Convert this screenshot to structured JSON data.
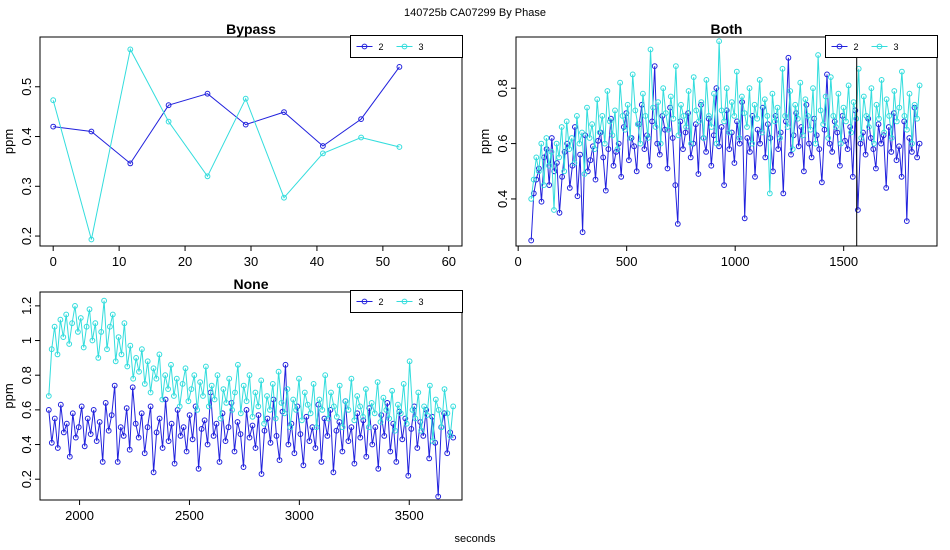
{
  "figure": {
    "title": "140725b    CA07299   By Phase",
    "xlabel": "seconds"
  },
  "colors": {
    "series_2": "#2222dd",
    "series_3": "#33dddd",
    "axis": "#000000"
  },
  "chart_data": [
    {
      "type": "line",
      "title": "Bypass",
      "ylabel": "ppm",
      "xlim": [
        -2,
        62
      ],
      "ylim": [
        0.18,
        0.6
      ],
      "xticks": [
        0,
        10,
        20,
        30,
        40,
        50,
        60
      ],
      "yticks": [
        0.2,
        0.3,
        0.4,
        0.5
      ],
      "legend": {
        "position": "top-right",
        "entries": [
          "2",
          "3"
        ]
      },
      "series": [
        {
          "name": "2",
          "x": [
            0,
            5.8,
            11.7,
            17.5,
            23.4,
            29.2,
            35,
            40.9,
            46.7,
            52.5
          ],
          "y": [
            0.42,
            0.41,
            0.346,
            0.463,
            0.486,
            0.424,
            0.449,
            0.381,
            0.435,
            0.54
          ]
        },
        {
          "name": "3",
          "x": [
            0,
            5.8,
            11.7,
            17.5,
            23.4,
            29.2,
            35,
            40.9,
            46.7,
            52.5
          ],
          "y": [
            0.473,
            0.193,
            0.575,
            0.43,
            0.32,
            0.476,
            0.277,
            0.366,
            0.398,
            0.379
          ]
        }
      ]
    },
    {
      "type": "line",
      "title": "Both",
      "ylabel": "ppm",
      "xlim": [
        -10,
        1930
      ],
      "ylim": [
        0.23,
        0.985
      ],
      "xticks": [
        0,
        500,
        1000,
        1500
      ],
      "yticks": [
        0.4,
        0.6,
        0.8
      ],
      "vline": 1560,
      "legend": {
        "position": "top-right",
        "entries": [
          "2",
          "3"
        ]
      },
      "series": [
        {
          "name": "2",
          "x_start": 60,
          "x_end": 1850,
          "y": [
            0.25,
            0.42,
            0.47,
            0.51,
            0.39,
            0.55,
            0.58,
            0.45,
            0.62,
            0.5,
            0.53,
            0.35,
            0.48,
            0.57,
            0.6,
            0.44,
            0.52,
            0.66,
            0.41,
            0.56,
            0.28,
            0.63,
            0.5,
            0.54,
            0.59,
            0.47,
            0.61,
            0.64,
            0.55,
            0.43,
            0.58,
            0.69,
            0.52,
            0.57,
            0.6,
            0.48,
            0.66,
            0.71,
            0.54,
            0.62,
            0.59,
            0.5,
            0.67,
            0.74,
            0.58,
            0.63,
            0.52,
            0.68,
            0.88,
            0.6,
            0.56,
            0.7,
            0.65,
            0.51,
            0.73,
            0.62,
            0.45,
            0.31,
            0.68,
            0.58,
            0.64,
            0.71,
            0.55,
            0.6,
            0.67,
            0.49,
            0.74,
            0.62,
            0.57,
            0.69,
            0.52,
            0.63,
            0.8,
            0.59,
            0.66,
            0.45,
            0.72,
            0.58,
            0.64,
            0.53,
            0.68,
            0.6,
            0.75,
            0.33,
            0.62,
            0.57,
            0.7,
            0.48,
            0.65,
            0.6,
            0.73,
            0.55,
            0.67,
            0.62,
            0.5,
            0.7,
            0.58,
            0.64,
            0.42,
            0.68,
            0.91,
            0.56,
            0.63,
            0.71,
            0.59,
            0.66,
            0.5,
            0.74,
            0.6,
            0.55,
            0.69,
            0.63,
            0.58,
            0.46,
            0.65,
            0.85,
            0.6,
            0.57,
            0.68,
            0.64,
            0.52,
            0.7,
            0.61,
            0.58,
            0.66,
            0.48,
            0.72,
            0.36,
            0.6,
            0.64,
            0.56,
            0.69,
            0.62,
            0.58,
            0.51,
            0.67,
            0.6,
            0.63,
            0.44,
            0.66,
            0.57,
            0.71,
            0.54,
            0.59,
            0.48,
            0.68,
            0.32,
            0.62,
            0.57,
            0.73,
            0.55,
            0.6
          ]
        },
        {
          "name": "3",
          "x_start": 60,
          "x_end": 1850,
          "y": [
            0.4,
            0.47,
            0.55,
            0.5,
            0.6,
            0.45,
            0.62,
            0.52,
            0.57,
            0.36,
            0.6,
            0.55,
            0.66,
            0.5,
            0.68,
            0.58,
            0.62,
            0.53,
            0.7,
            0.6,
            0.64,
            0.49,
            0.73,
            0.62,
            0.67,
            0.58,
            0.76,
            0.64,
            0.7,
            0.6,
            0.79,
            0.68,
            0.63,
            0.72,
            0.58,
            0.82,
            0.7,
            0.65,
            0.74,
            0.62,
            0.85,
            0.72,
            0.67,
            0.6,
            0.78,
            0.7,
            0.62,
            0.94,
            0.73,
            0.66,
            0.75,
            0.6,
            0.8,
            0.71,
            0.65,
            0.77,
            0.69,
            0.88,
            0.63,
            0.74,
            0.7,
            0.66,
            0.79,
            0.6,
            0.84,
            0.72,
            0.68,
            0.75,
            0.62,
            0.83,
            0.7,
            0.66,
            0.78,
            0.6,
            0.97,
            0.72,
            0.68,
            0.8,
            0.64,
            0.75,
            0.7,
            0.86,
            0.62,
            0.77,
            0.71,
            0.66,
            0.8,
            0.6,
            0.74,
            0.69,
            0.83,
            0.64,
            0.76,
            0.7,
            0.42,
            0.78,
            0.68,
            0.73,
            0.62,
            0.87,
            0.7,
            0.66,
            0.79,
            0.58,
            0.74,
            0.69,
            0.82,
            0.63,
            0.76,
            0.7,
            0.65,
            0.8,
            0.6,
            0.92,
            0.72,
            0.67,
            0.77,
            0.62,
            0.84,
            0.7,
            0.66,
            0.78,
            0.6,
            0.73,
            0.68,
            0.81,
            0.64,
            0.75,
            0.69,
            0.87,
            0.62,
            0.77,
            0.7,
            0.66,
            0.8,
            0.6,
            0.74,
            0.69,
            0.83,
            0.64,
            0.76,
            0.7,
            0.62,
            0.79,
            0.68,
            0.73,
            0.86,
            0.7,
            0.65,
            0.78,
            0.6,
            0.74,
            0.69,
            0.81
          ]
        }
      ]
    },
    {
      "type": "line",
      "title": "None",
      "ylabel": "ppm",
      "xlim": [
        1820,
        3740
      ],
      "ylim": [
        0.08,
        1.28
      ],
      "xticks": [
        2000,
        2500,
        3000,
        3500
      ],
      "yticks": [
        0.2,
        0.4,
        0.6,
        0.8,
        1.0,
        1.2
      ],
      "legend": {
        "position": "top-right",
        "entries": [
          "2",
          "3"
        ]
      },
      "series": [
        {
          "name": "2",
          "x_start": 1860,
          "x_end": 3700,
          "y": [
            0.6,
            0.41,
            0.55,
            0.38,
            0.63,
            0.47,
            0.52,
            0.33,
            0.58,
            0.44,
            0.5,
            0.62,
            0.39,
            0.55,
            0.46,
            0.6,
            0.42,
            0.53,
            0.3,
            0.64,
            0.48,
            0.57,
            0.74,
            0.3,
            0.5,
            0.45,
            0.61,
            0.37,
            0.73,
            0.52,
            0.44,
            0.58,
            0.35,
            0.5,
            0.62,
            0.24,
            0.47,
            0.55,
            0.38,
            0.66,
            0.42,
            0.52,
            0.29,
            0.6,
            0.45,
            0.5,
            0.36,
            0.57,
            0.43,
            0.62,
            0.26,
            0.49,
            0.54,
            0.4,
            0.7,
            0.45,
            0.52,
            0.3,
            0.58,
            0.42,
            0.5,
            0.64,
            0.36,
            0.53,
            0.46,
            0.27,
            0.6,
            0.44,
            0.51,
            0.38,
            0.57,
            0.23,
            0.48,
            0.55,
            0.41,
            0.66,
            0.45,
            0.31,
            0.59,
            0.86,
            0.4,
            0.52,
            0.35,
            0.62,
            0.46,
            0.28,
            0.56,
            0.42,
            0.5,
            0.38,
            0.63,
            0.3,
            0.55,
            0.45,
            0.6,
            0.24,
            0.48,
            0.53,
            0.36,
            0.65,
            0.42,
            0.5,
            0.29,
            0.58,
            0.44,
            0.54,
            0.33,
            0.61,
            0.4,
            0.5,
            0.26,
            0.57,
            0.45,
            0.64,
            0.36,
            0.52,
            0.3,
            0.59,
            0.43,
            0.55,
            0.22,
            0.49,
            0.62,
            0.38,
            0.53,
            0.45,
            0.6,
            0.32,
            0.56,
            0.41,
            0.1,
            0.5,
            0.58,
            0.35,
            0.47,
            0.44
          ]
        },
        {
          "name": "3",
          "x_start": 1860,
          "x_end": 3700,
          "y": [
            0.68,
            0.95,
            1.08,
            0.92,
            1.12,
            1.02,
            1.15,
            0.98,
            1.1,
            1.2,
            1.05,
            1.13,
            0.96,
            1.08,
            1.18,
            1.0,
            1.1,
            0.9,
            1.05,
            1.23,
            0.95,
            1.08,
            1.15,
            0.88,
            1.02,
            0.92,
            1.1,
            0.85,
            0.97,
            0.78,
            0.9,
            0.82,
            0.95,
            0.75,
            0.88,
            0.7,
            0.84,
            0.78,
            0.92,
            0.66,
            0.8,
            0.72,
            0.86,
            0.68,
            0.78,
            0.62,
            0.75,
            0.84,
            0.65,
            0.72,
            0.8,
            0.6,
            0.76,
            0.68,
            0.85,
            0.62,
            0.74,
            0.66,
            0.8,
            0.55,
            0.72,
            0.64,
            0.78,
            0.6,
            0.7,
            0.86,
            0.58,
            0.74,
            0.65,
            0.8,
            0.56,
            0.7,
            0.62,
            0.77,
            0.52,
            0.68,
            0.6,
            0.75,
            0.55,
            0.82,
            0.64,
            0.58,
            0.72,
            0.5,
            0.66,
            0.6,
            0.78,
            0.54,
            0.7,
            0.63,
            0.58,
            0.75,
            0.5,
            0.66,
            0.6,
            0.8,
            0.55,
            0.7,
            0.62,
            0.56,
            0.74,
            0.5,
            0.65,
            0.6,
            0.78,
            0.54,
            0.68,
            0.62,
            0.56,
            0.72,
            0.5,
            0.64,
            0.58,
            0.76,
            0.53,
            0.67,
            0.6,
            0.55,
            0.71,
            0.48,
            0.63,
            0.58,
            0.75,
            0.52,
            0.88,
            0.6,
            0.55,
            0.7,
            0.48,
            0.62,
            0.57,
            0.74,
            0.42,
            0.66,
            0.6,
            0.5,
            0.72,
            0.58,
            0.45,
            0.62
          ]
        }
      ]
    }
  ]
}
